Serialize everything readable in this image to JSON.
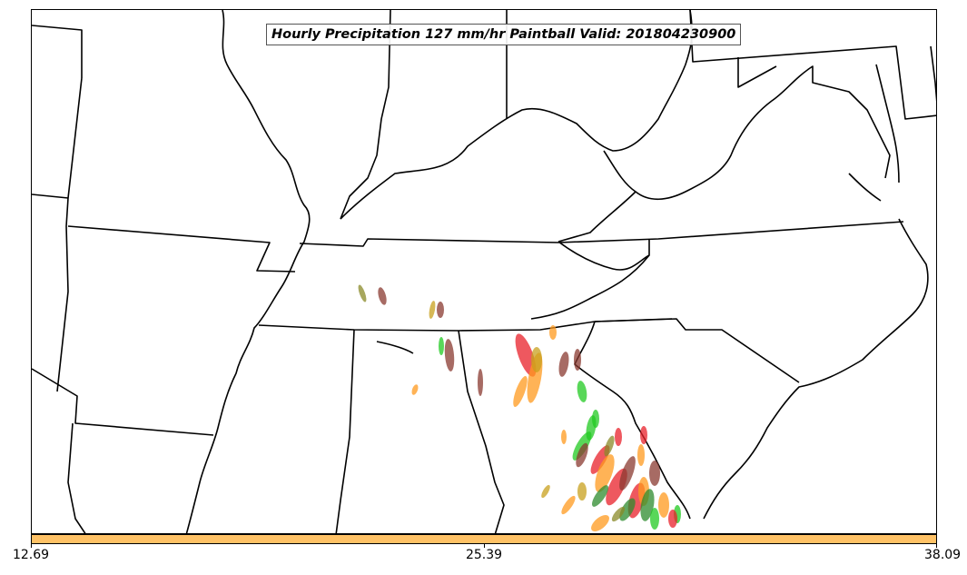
{
  "map": {
    "title": "Hourly Precipitation 127 mm/hr Paintball Valid: 201804230900",
    "paintball_colors": [
      "#e8202a",
      "#ff9a1e",
      "#22c922",
      "#8a3a30",
      "#8a8a28",
      "#c8a01e",
      "#2e8b2e"
    ]
  },
  "colorbar": {
    "color": "#ffc266",
    "ticks": [
      "12.69",
      "25.39",
      "38.09"
    ]
  }
}
